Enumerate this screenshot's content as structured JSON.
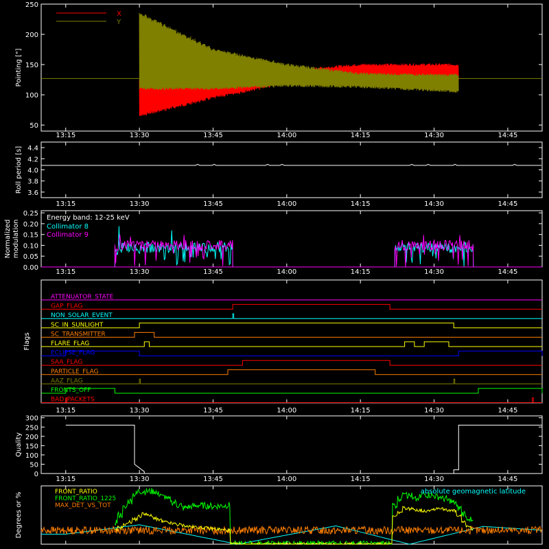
{
  "time_ticks": [
    "13:15",
    "13:30",
    "13:45",
    "14:00",
    "14:15",
    "14:30",
    "14:45"
  ],
  "chart_data": [
    {
      "type": "line",
      "ylabel": "Pointing [\"]",
      "ylim": [
        40,
        250
      ],
      "yticks": [
        50,
        100,
        150,
        200,
        250
      ],
      "series": [
        {
          "name": "X",
          "color": "#ff0000",
          "envelope": {
            "t": [
              "13:30",
              "13:45",
              "14:00",
              "14:15",
              "14:30",
              "14:35"
            ],
            "upper": [
              125,
              127,
              140,
              150,
              150,
              150
            ],
            "lower": [
              65,
              95,
              120,
              125,
              123,
              122
            ]
          }
        },
        {
          "name": "Y",
          "color": "#7f7f00",
          "envelope": {
            "t": [
              "13:30",
              "13:45",
              "14:00",
              "14:15",
              "14:30",
              "14:35"
            ],
            "upper": [
              235,
              175,
              150,
              135,
              133,
              133
            ],
            "lower": [
              110,
              110,
              115,
              113,
              107,
              105
            ]
          }
        }
      ],
      "baseline": 127
    },
    {
      "type": "line",
      "ylabel": "Roll period [s]",
      "ylim": [
        3.5,
        4.5
      ],
      "yticks": [
        3.6,
        3.8,
        4.0,
        4.2,
        4.4
      ],
      "series": [
        {
          "color": "#ffffff",
          "value": 4.08
        }
      ]
    },
    {
      "type": "line",
      "ylabel": "Normalized modulation",
      "ylim": [
        0,
        0.26
      ],
      "yticks": [
        0.0,
        0.05,
        0.1,
        0.15,
        0.2,
        0.25
      ],
      "annotation": "Energy band: 12-25 keV",
      "series": [
        {
          "name": "Collimator 8",
          "color": "#00ffff",
          "active": [
            [
              "13:25",
              "13:49"
            ],
            [
              "14:22",
              "14:38"
            ]
          ],
          "mean": 0.09
        },
        {
          "name": "Collimator 9",
          "color": "#ff00ff",
          "active": [
            [
              "13:25",
              "13:49"
            ],
            [
              "14:22",
              "14:38"
            ]
          ],
          "mean": 0.1
        }
      ]
    },
    {
      "type": "line",
      "ylabel": "Flags",
      "series": [
        {
          "name": "ATTENUATOR_STATE",
          "color": "#ff00ff",
          "high": []
        },
        {
          "name": "GAP_FLAG",
          "color": "#ff0000",
          "high": [
            [
              "13:49",
              "14:21"
            ]
          ]
        },
        {
          "name": "NON_SOLAR_EVENT",
          "color": "#00ffff",
          "high": [
            [
              "13:49",
              "13:49"
            ]
          ]
        },
        {
          "name": "SC_IN_SUNLIGHT",
          "color": "#ffff00",
          "high": [
            [
              "13:30",
              "14:34"
            ]
          ]
        },
        {
          "name": "SC_TRANSMITTER",
          "color": "#ff7f00",
          "high": [
            [
              "13:29",
              "13:33"
            ]
          ]
        },
        {
          "name": "FLARE_FLAG",
          "color": "#ffff00",
          "high": [
            [
              "13:31",
              "13:32"
            ],
            [
              "14:24",
              "14:26"
            ],
            [
              "14:28",
              "14:33"
            ]
          ]
        },
        {
          "name": "ECLIPSE_FLAG",
          "color": "#0000ff",
          "high": [
            [
              "13:15",
              "13:30"
            ],
            [
              "14:35",
              "14:52"
            ]
          ]
        },
        {
          "name": "SAA_FLAG",
          "color": "#ff0000",
          "high": [
            [
              "13:51",
              "14:21"
            ]
          ]
        },
        {
          "name": "PARTICLE_FLAG",
          "color": "#ff7f00",
          "high": [
            [
              "13:48",
              "14:18"
            ]
          ]
        },
        {
          "name": "AAZ_FLAG",
          "color": "#7f7f00",
          "high": [
            [
              "13:30",
              "13:30"
            ],
            [
              "14:34",
              "14:34"
            ]
          ]
        },
        {
          "name": "FRONTS_OFF",
          "color": "#00ff00",
          "high": [
            [
              "13:15",
              "13:25"
            ],
            [
              "14:39",
              "14:52"
            ]
          ]
        },
        {
          "name": "BAD_PACKETS",
          "color": "#ff0000",
          "high": [
            [
              "13:15",
              "13:15"
            ],
            [
              "14:50",
              "14:50"
            ]
          ]
        }
      ]
    },
    {
      "type": "line",
      "ylabel": "Quality",
      "ylim": [
        0,
        310
      ],
      "yticks": [
        0,
        50,
        100,
        150,
        200,
        250,
        300
      ],
      "series": [
        {
          "color": "#ffffff",
          "t": [
            "13:15",
            "13:29",
            "13:29",
            "13:31",
            "13:31",
            "14:34",
            "14:34",
            "14:35",
            "14:35",
            "14:52"
          ],
          "values": [
            260,
            260,
            50,
            10,
            0,
            0,
            20,
            20,
            260,
            260
          ]
        }
      ]
    },
    {
      "type": "line",
      "ylabel": "Degrees or %",
      "ylim": [
        0,
        105
      ],
      "series": [
        {
          "name": "FRONT_RATIO",
          "color": "#ffff00",
          "t": [
            "13:25",
            "13:29",
            "13:31",
            "13:35",
            "13:40",
            "13:45",
            "13:48",
            "13:49",
            "14:21",
            "14:22",
            "14:24",
            "14:28",
            "14:31",
            "14:34",
            "14:36",
            "14:38"
          ],
          "values": [
            25,
            45,
            55,
            40,
            32,
            28,
            25,
            0,
            0,
            50,
            65,
            60,
            65,
            60,
            40,
            25
          ]
        },
        {
          "name": "FRONT_RATIO_1225",
          "color": "#00ff00",
          "t": [
            "13:25",
            "13:29",
            "13:30",
            "13:33",
            "13:36",
            "13:39",
            "13:42",
            "13:45",
            "13:48",
            "13:49",
            "14:21",
            "14:22",
            "14:24",
            "14:26",
            "14:28",
            "14:31",
            "14:34",
            "14:36",
            "14:38"
          ],
          "values": [
            40,
            90,
            95,
            95,
            80,
            65,
            70,
            68,
            70,
            0,
            0,
            70,
            95,
            80,
            90,
            85,
            75,
            55,
            40
          ]
        },
        {
          "name": "MAX_DET_VS_TOT",
          "color": "#ff7f00",
          "mean": 25
        },
        {
          "name": "absolute geomagnetic latitude",
          "color": "#00ffff",
          "t": [
            "13:15",
            "13:30",
            "13:50",
            "14:10",
            "14:25",
            "14:40",
            "14:52"
          ],
          "values": [
            18,
            35,
            0,
            33,
            0,
            32,
            25
          ]
        }
      ]
    }
  ]
}
